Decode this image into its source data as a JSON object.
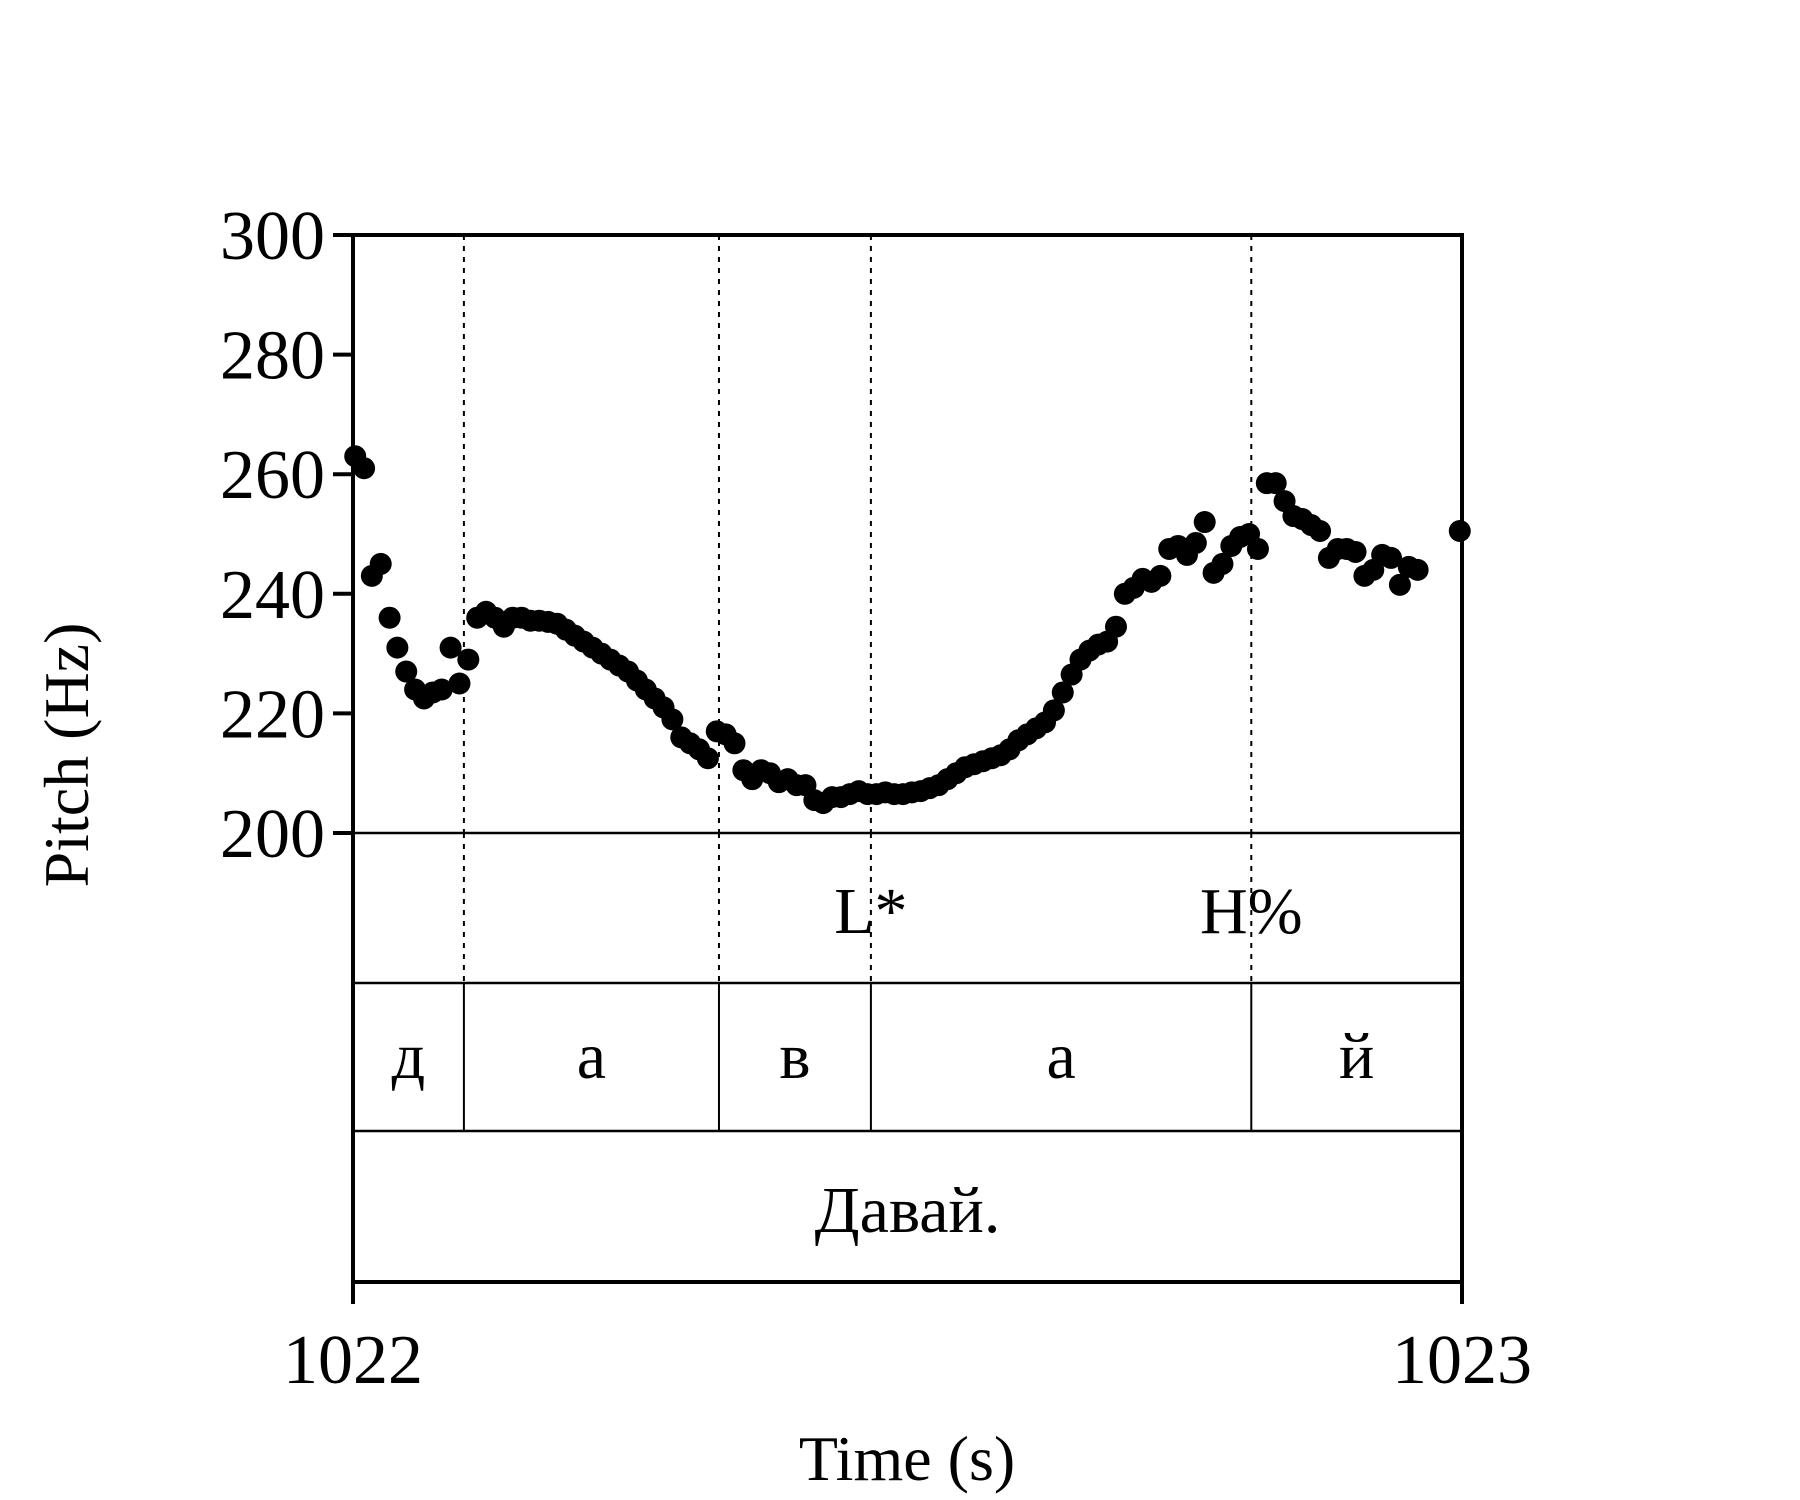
{
  "chart_data": {
    "type": "scatter",
    "title": "",
    "xlabel": "Time (s)",
    "ylabel": "Pitch (Hz)",
    "xlim": [
      1022,
      1023
    ],
    "ylim": [
      200,
      300
    ],
    "y_ticks": [
      "300",
      "280",
      "260",
      "240",
      "220",
      "200"
    ],
    "x_ticks": [
      "1022",
      "1023"
    ],
    "point_color": "#000000",
    "points": [
      [
        1022.002,
        263
      ],
      [
        1022.01,
        261
      ],
      [
        1022.017,
        243
      ],
      [
        1022.025,
        245
      ],
      [
        1022.033,
        236
      ],
      [
        1022.04,
        231
      ],
      [
        1022.048,
        227
      ],
      [
        1022.056,
        224
      ],
      [
        1022.064,
        222.5
      ],
      [
        1022.072,
        223.5
      ],
      [
        1022.08,
        224
      ],
      [
        1022.088,
        231
      ],
      [
        1022.096,
        225
      ],
      [
        1022.104,
        229
      ],
      [
        1022.112,
        236
      ],
      [
        1022.12,
        237
      ],
      [
        1022.128,
        236
      ],
      [
        1022.136,
        234.5
      ],
      [
        1022.144,
        236
      ],
      [
        1022.152,
        236
      ],
      [
        1022.16,
        235.5
      ],
      [
        1022.168,
        235.5
      ],
      [
        1022.176,
        235.3
      ],
      [
        1022.184,
        235
      ],
      [
        1022.192,
        234
      ],
      [
        1022.2,
        233
      ],
      [
        1022.208,
        232
      ],
      [
        1022.216,
        231
      ],
      [
        1022.224,
        230
      ],
      [
        1022.232,
        229
      ],
      [
        1022.24,
        228
      ],
      [
        1022.248,
        227
      ],
      [
        1022.256,
        225.5
      ],
      [
        1022.264,
        224
      ],
      [
        1022.272,
        222.5
      ],
      [
        1022.28,
        221
      ],
      [
        1022.288,
        219
      ],
      [
        1022.296,
        216
      ],
      [
        1022.304,
        215
      ],
      [
        1022.312,
        214
      ],
      [
        1022.32,
        212.5
      ],
      [
        1022.328,
        217
      ],
      [
        1022.336,
        216.5
      ],
      [
        1022.344,
        215
      ],
      [
        1022.352,
        210.5
      ],
      [
        1022.36,
        209
      ],
      [
        1022.368,
        210.5
      ],
      [
        1022.376,
        210
      ],
      [
        1022.384,
        208.5
      ],
      [
        1022.392,
        209
      ],
      [
        1022.4,
        208
      ],
      [
        1022.408,
        208
      ],
      [
        1022.416,
        205.5
      ],
      [
        1022.424,
        205
      ],
      [
        1022.432,
        206
      ],
      [
        1022.44,
        206
      ],
      [
        1022.448,
        206.5
      ],
      [
        1022.456,
        207
      ],
      [
        1022.464,
        206.5
      ],
      [
        1022.472,
        206.5
      ],
      [
        1022.48,
        206.8
      ],
      [
        1022.488,
        206.5
      ],
      [
        1022.496,
        206.5
      ],
      [
        1022.504,
        206.8
      ],
      [
        1022.512,
        207
      ],
      [
        1022.52,
        207.5
      ],
      [
        1022.528,
        208
      ],
      [
        1022.536,
        209
      ],
      [
        1022.544,
        210
      ],
      [
        1022.552,
        211
      ],
      [
        1022.56,
        211.5
      ],
      [
        1022.568,
        212
      ],
      [
        1022.576,
        212.5
      ],
      [
        1022.584,
        213
      ],
      [
        1022.592,
        214
      ],
      [
        1022.6,
        215.5
      ],
      [
        1022.608,
        216.5
      ],
      [
        1022.616,
        217.5
      ],
      [
        1022.624,
        218.5
      ],
      [
        1022.632,
        220.5
      ],
      [
        1022.64,
        223.5
      ],
      [
        1022.648,
        226.5
      ],
      [
        1022.656,
        229
      ],
      [
        1022.664,
        230.5
      ],
      [
        1022.672,
        231.5
      ],
      [
        1022.68,
        232
      ],
      [
        1022.688,
        234.5
      ],
      [
        1022.696,
        240
      ],
      [
        1022.704,
        241
      ],
      [
        1022.712,
        242.5
      ],
      [
        1022.72,
        242
      ],
      [
        1022.728,
        243
      ],
      [
        1022.736,
        247.5
      ],
      [
        1022.744,
        248
      ],
      [
        1022.752,
        246.5
      ],
      [
        1022.76,
        248.5
      ],
      [
        1022.768,
        252
      ],
      [
        1022.776,
        243.5
      ],
      [
        1022.784,
        245
      ],
      [
        1022.792,
        248
      ],
      [
        1022.8,
        249.5
      ],
      [
        1022.808,
        250
      ],
      [
        1022.816,
        247.5
      ],
      [
        1022.824,
        258.5
      ],
      [
        1022.832,
        258.5
      ],
      [
        1022.84,
        255.5
      ],
      [
        1022.848,
        253
      ],
      [
        1022.856,
        252.5
      ],
      [
        1022.864,
        251.5
      ],
      [
        1022.872,
        250.5
      ],
      [
        1022.88,
        246
      ],
      [
        1022.888,
        247.5
      ],
      [
        1022.896,
        247.5
      ],
      [
        1022.904,
        247
      ],
      [
        1022.912,
        243
      ],
      [
        1022.92,
        244
      ],
      [
        1022.928,
        246.5
      ],
      [
        1022.936,
        246
      ],
      [
        1022.944,
        241.5
      ],
      [
        1022.952,
        244.5
      ],
      [
        1022.96,
        244
      ],
      [
        1022.998,
        250.5
      ]
    ],
    "boundaries": [
      1022.1,
      1022.33,
      1022.467,
      1022.81
    ],
    "tones": [
      {
        "label": "L*",
        "time": 1022.467
      },
      {
        "label": "H%",
        "time": 1022.81
      }
    ],
    "segments": [
      {
        "label": "д",
        "start": 1022.0,
        "end": 1022.1
      },
      {
        "label": "а",
        "start": 1022.1,
        "end": 1022.33
      },
      {
        "label": "в",
        "start": 1022.33,
        "end": 1022.467
      },
      {
        "label": "а",
        "start": 1022.467,
        "end": 1022.81
      },
      {
        "label": "й",
        "start": 1022.81,
        "end": 1023.0
      }
    ],
    "words": [
      {
        "label": "Давай.",
        "start": 1022.0,
        "end": 1023.0
      }
    ]
  }
}
